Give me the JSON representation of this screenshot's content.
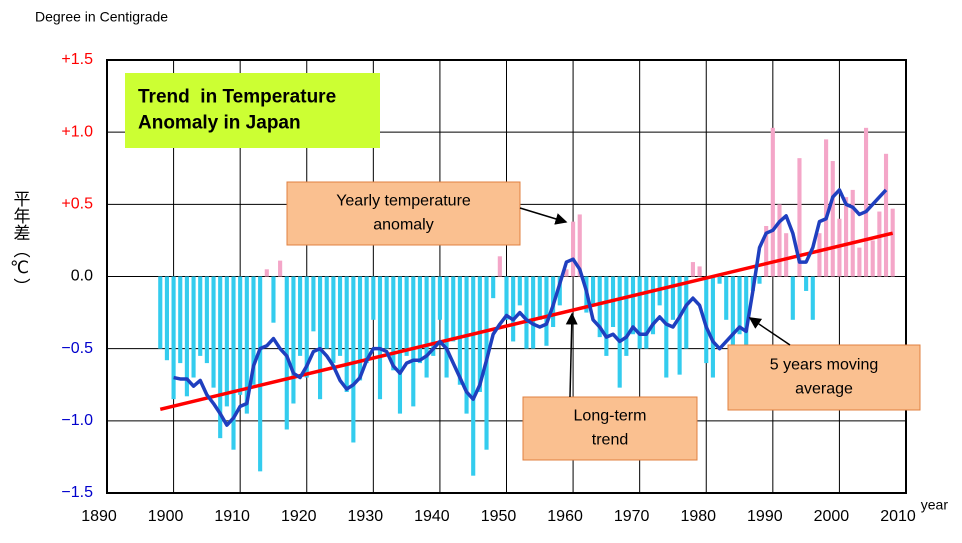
{
  "chart_data": {
    "type": "bar+line",
    "y_unit": "Degree in Centigrade",
    "ylabel": "平年差（℃）",
    "xlabel": "year",
    "xlim": [
      1890,
      2010
    ],
    "xticks": [
      1890,
      1900,
      1910,
      1920,
      1930,
      1940,
      1950,
      1960,
      1970,
      1980,
      1990,
      2000,
      2010
    ],
    "ylim": [
      -1.5,
      1.5
    ],
    "yticks": [
      {
        "value": 1.5,
        "label": "+1.5"
      },
      {
        "value": 1.0,
        "label": "+1.0"
      },
      {
        "value": 0.5,
        "label": "+0.5"
      },
      {
        "value": 0,
        "label": "0.0"
      },
      {
        "value": -0.5,
        "label": "−0.5"
      },
      {
        "value": -1.0,
        "label": "−1.0"
      },
      {
        "value": -1.5,
        "label": "−1.5"
      }
    ],
    "grid": true,
    "x": [
      1898,
      1899,
      1900,
      1901,
      1902,
      1903,
      1904,
      1905,
      1906,
      1907,
      1908,
      1909,
      1910,
      1911,
      1912,
      1913,
      1914,
      1915,
      1916,
      1917,
      1918,
      1919,
      1920,
      1921,
      1922,
      1923,
      1924,
      1925,
      1926,
      1927,
      1928,
      1929,
      1930,
      1931,
      1932,
      1933,
      1934,
      1935,
      1936,
      1937,
      1938,
      1939,
      1940,
      1941,
      1942,
      1943,
      1944,
      1945,
      1946,
      1947,
      1948,
      1949,
      1950,
      1951,
      1952,
      1953,
      1954,
      1955,
      1956,
      1957,
      1958,
      1959,
      1960,
      1961,
      1962,
      1963,
      1964,
      1965,
      1966,
      1967,
      1968,
      1969,
      1970,
      1971,
      1972,
      1973,
      1974,
      1975,
      1976,
      1977,
      1978,
      1979,
      1980,
      1981,
      1982,
      1983,
      1984,
      1985,
      1986,
      1987,
      1988,
      1989,
      1990,
      1991,
      1992,
      1993,
      1994,
      1995,
      1996,
      1997,
      1998,
      1999,
      2000,
      2001,
      2002,
      2003,
      2004,
      2005,
      2006,
      2007,
      2008
    ],
    "series": [
      {
        "kind": "bar",
        "positive_color": "#f4a6c8",
        "negative_color": "#33ccee",
        "values": [
          -0.5,
          -0.58,
          -0.85,
          -0.6,
          -0.83,
          -0.7,
          -0.55,
          -0.6,
          -0.77,
          -1.12,
          -0.9,
          -1.2,
          -0.82,
          -0.95,
          -0.75,
          -1.35,
          0.05,
          -0.32,
          0.11,
          -1.06,
          -0.88,
          -0.55,
          -0.7,
          -0.38,
          -0.85,
          -0.5,
          -0.6,
          -0.55,
          -0.8,
          -1.15,
          -0.72,
          -0.6,
          -0.3,
          -0.85,
          -0.5,
          -0.65,
          -0.95,
          -0.55,
          -0.9,
          -0.6,
          -0.7,
          -0.55,
          -0.3,
          -0.7,
          -0.45,
          -0.75,
          -0.95,
          -1.38,
          -0.8,
          -1.2,
          -0.15,
          0.14,
          -0.3,
          -0.45,
          -0.2,
          -0.5,
          -0.5,
          -0.3,
          -0.48,
          -0.35,
          -0.2,
          0.05,
          0.38,
          0.43,
          -0.25,
          -0.2,
          -0.42,
          -0.55,
          -0.35,
          -0.77,
          -0.55,
          -0.4,
          -0.5,
          -0.5,
          -0.4,
          -0.2,
          -0.7,
          -0.3,
          -0.68,
          -0.5,
          0.1,
          0.07,
          -0.6,
          -0.7,
          -0.05,
          -0.3,
          -0.8,
          -0.4,
          -0.7,
          -0.1,
          -0.05,
          0.35,
          1.03,
          0.5,
          0.3,
          -0.3,
          0.82,
          -0.1,
          -0.3,
          0.3,
          0.95,
          0.8,
          0.4,
          0.55,
          0.6,
          0.2,
          1.03,
          0.25,
          0.45,
          0.85,
          0.47
        ]
      },
      {
        "kind": "line",
        "color": "#1f3fbf",
        "values": [
          null,
          null,
          -0.7,
          -0.71,
          -0.71,
          -0.76,
          -0.72,
          -0.82,
          -0.88,
          -0.95,
          -1.03,
          -0.98,
          -0.9,
          -0.88,
          -0.62,
          -0.5,
          -0.48,
          -0.43,
          -0.5,
          -0.55,
          -0.67,
          -0.7,
          -0.62,
          -0.52,
          -0.5,
          -0.55,
          -0.62,
          -0.72,
          -0.78,
          -0.75,
          -0.7,
          -0.58,
          -0.5,
          -0.5,
          -0.52,
          -0.62,
          -0.67,
          -0.6,
          -0.58,
          -0.58,
          -0.55,
          -0.5,
          -0.45,
          -0.5,
          -0.6,
          -0.7,
          -0.8,
          -0.85,
          -0.75,
          -0.58,
          -0.4,
          -0.33,
          -0.27,
          -0.3,
          -0.25,
          -0.3,
          -0.33,
          -0.35,
          -0.33,
          -0.2,
          -0.05,
          0.1,
          0.12,
          0.05,
          -0.1,
          -0.3,
          -0.35,
          -0.42,
          -0.4,
          -0.45,
          -0.42,
          -0.35,
          -0.4,
          -0.4,
          -0.33,
          -0.28,
          -0.33,
          -0.35,
          -0.28,
          -0.2,
          -0.15,
          -0.2,
          -0.35,
          -0.45,
          -0.5,
          -0.45,
          -0.4,
          -0.35,
          -0.38,
          -0.1,
          0.2,
          0.3,
          0.32,
          0.38,
          0.42,
          0.3,
          0.1,
          0.1,
          0.2,
          0.38,
          0.4,
          0.55,
          0.6,
          0.5,
          0.48,
          0.43,
          0.45,
          0.5,
          0.55,
          0.6,
          null
        ]
      }
    ],
    "trend": {
      "color": "#ff0000",
      "x": [
        1898,
        2008
      ],
      "values": [
        -0.92,
        0.3
      ]
    },
    "annotations": [
      {
        "name": "title-box",
        "lines": [
          "Trend  in Temperature",
          "Anomaly in Japan"
        ]
      },
      {
        "name": "yearly-callout",
        "lines": [
          "Yearly temperature",
          "anomaly"
        ]
      },
      {
        "name": "trend-callout",
        "lines": [
          "Long-term",
          "trend"
        ]
      },
      {
        "name": "moving-average-callout",
        "lines": [
          "5 years moving",
          "average"
        ]
      }
    ]
  }
}
